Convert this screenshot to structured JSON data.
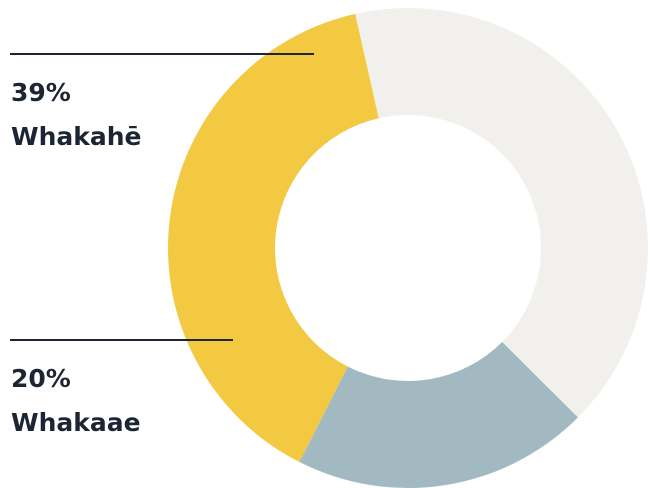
{
  "chart_data": {
    "type": "donut",
    "categories": [
      "Whakahē",
      "Whakaae",
      null
    ],
    "values": [
      39,
      20,
      41
    ],
    "value_labels": [
      "39%",
      "20%",
      null
    ],
    "colors": [
      "#f4c942",
      "#a3b9c2",
      "#f1f0ec"
    ]
  }
}
